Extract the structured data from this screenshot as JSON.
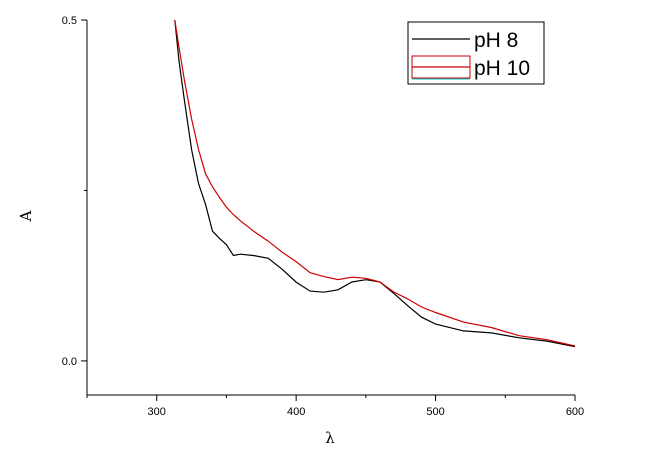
{
  "chart_data": {
    "type": "line",
    "xlabel": "λ",
    "ylabel": "A",
    "xlim": [
      250,
      600
    ],
    "ylim": [
      -0.05,
      0.5
    ],
    "x_ticks": [
      300,
      400,
      500,
      600
    ],
    "y_ticks": [
      0.0,
      0.5
    ],
    "x_tick_labels": [
      "300",
      "400",
      "500",
      "600"
    ],
    "y_tick_labels": [
      "0.0",
      "0.5"
    ],
    "grid": false,
    "legend_position": "top-right",
    "series": [
      {
        "name": "pH 8",
        "color": "#000000",
        "x": [
          313,
          316,
          320,
          325,
          330,
          335,
          340,
          345,
          350,
          355,
          360,
          370,
          380,
          390,
          400,
          410,
          420,
          430,
          440,
          450,
          460,
          470,
          480,
          490,
          500,
          520,
          540,
          560,
          580,
          600
        ],
        "y": [
          0.5,
          0.44,
          0.38,
          0.31,
          0.26,
          0.23,
          0.19,
          0.18,
          0.17,
          0.155,
          0.156,
          0.155,
          0.15,
          0.135,
          0.115,
          0.103,
          0.1,
          0.105,
          0.115,
          0.12,
          0.115,
          0.1,
          0.08,
          0.065,
          0.053,
          0.045,
          0.04,
          0.035,
          0.028,
          0.021
        ]
      },
      {
        "name": "pH 10",
        "color": "#cc0000",
        "x": [
          313,
          316,
          320,
          325,
          330,
          335,
          340,
          345,
          350,
          355,
          360,
          370,
          380,
          390,
          400,
          410,
          420,
          430,
          440,
          450,
          460,
          470,
          480,
          490,
          500,
          520,
          540,
          560,
          580,
          600
        ],
        "y": [
          0.5,
          0.46,
          0.41,
          0.355,
          0.31,
          0.275,
          0.255,
          0.24,
          0.225,
          0.215,
          0.205,
          0.19,
          0.175,
          0.16,
          0.145,
          0.13,
          0.123,
          0.12,
          0.122,
          0.122,
          0.115,
          0.102,
          0.09,
          0.08,
          0.07,
          0.058,
          0.048,
          0.038,
          0.03,
          0.022
        ]
      }
    ]
  }
}
